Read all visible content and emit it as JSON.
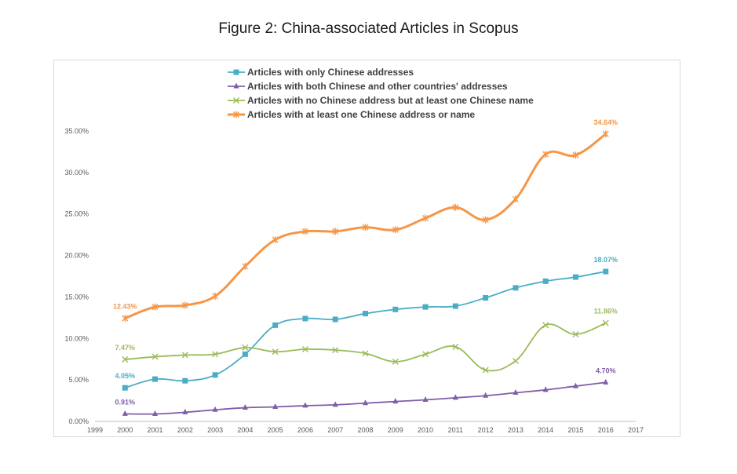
{
  "title": "Figure 2: China-associated Articles in Scopus",
  "chart_data": {
    "type": "line",
    "title": "Figure 2: China-associated Articles in Scopus",
    "xlabel": "",
    "ylabel": "",
    "xlim": [
      1999,
      2017
    ],
    "ylim": [
      0,
      35
    ],
    "x_ticks": [
      "1999",
      "2000",
      "2001",
      "2002",
      "2003",
      "2004",
      "2005",
      "2006",
      "2007",
      "2008",
      "2009",
      "2010",
      "2011",
      "2012",
      "2013",
      "2014",
      "2015",
      "2016",
      "2017"
    ],
    "y_ticks": [
      "0.00%",
      "5.00%",
      "10.00%",
      "15.00%",
      "20.00%",
      "25.00%",
      "30.00%",
      "35.00%"
    ],
    "x": [
      2000,
      2001,
      2002,
      2003,
      2004,
      2005,
      2006,
      2007,
      2008,
      2009,
      2010,
      2011,
      2012,
      2013,
      2014,
      2015,
      2016
    ],
    "legend_position": "top",
    "grid": false,
    "series": [
      {
        "name": "Articles with only Chinese addresses",
        "color": "#4bacc6",
        "marker": "square",
        "values": [
          4.05,
          5.1,
          4.9,
          5.6,
          8.1,
          11.6,
          12.4,
          12.3,
          13.0,
          13.5,
          13.8,
          13.9,
          14.9,
          16.1,
          16.9,
          17.4,
          18.07
        ],
        "labels": [
          {
            "x": 2000,
            "text": "4.05%"
          },
          {
            "x": 2016,
            "text": "18.07%"
          }
        ]
      },
      {
        "name": "Articles with both Chinese and other countries' addresses",
        "color": "#7f5ea8",
        "marker": "triangle",
        "values": [
          0.91,
          0.9,
          1.1,
          1.4,
          1.65,
          1.75,
          1.9,
          2.0,
          2.2,
          2.4,
          2.6,
          2.85,
          3.1,
          3.45,
          3.8,
          4.25,
          4.7
        ],
        "labels": [
          {
            "x": 2000,
            "text": "0.91%"
          },
          {
            "x": 2016,
            "text": "4.70%"
          }
        ]
      },
      {
        "name": "Articles with no Chinese address but at least one Chinese name",
        "color": "#9bbb59",
        "marker": "x",
        "values": [
          7.47,
          7.8,
          8.0,
          8.1,
          8.9,
          8.4,
          8.7,
          8.6,
          8.2,
          7.2,
          8.1,
          9.0,
          6.2,
          7.3,
          11.6,
          10.5,
          11.86
        ],
        "labels": [
          {
            "x": 2000,
            "text": "7.47%"
          },
          {
            "x": 2016,
            "text": "11.86%"
          }
        ]
      },
      {
        "name": "Articles with at least one Chinese address or name",
        "color": "#f79646",
        "marker": "star",
        "values": [
          12.43,
          13.8,
          14.0,
          15.1,
          18.7,
          21.9,
          22.9,
          22.9,
          23.4,
          23.1,
          24.5,
          25.8,
          24.3,
          26.8,
          32.2,
          32.1,
          34.64
        ],
        "labels": [
          {
            "x": 2000,
            "text": "12.43%"
          },
          {
            "x": 2016,
            "text": "34.64%"
          }
        ]
      }
    ]
  }
}
